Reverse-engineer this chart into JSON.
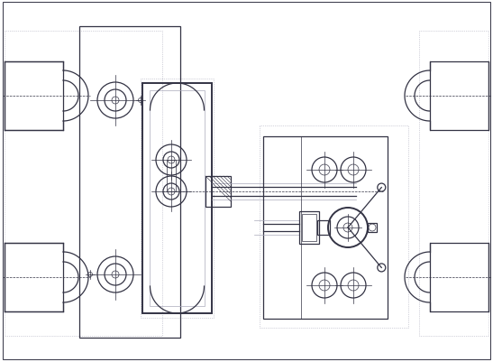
{
  "bg_color": "#ffffff",
  "line_color": "#333344",
  "gray_line_color": "#aaaabb",
  "figsize": [
    5.47,
    4.02
  ],
  "dpi": 100,
  "lw_main": 0.9,
  "lw_thin": 0.5,
  "lw_thick": 1.4
}
